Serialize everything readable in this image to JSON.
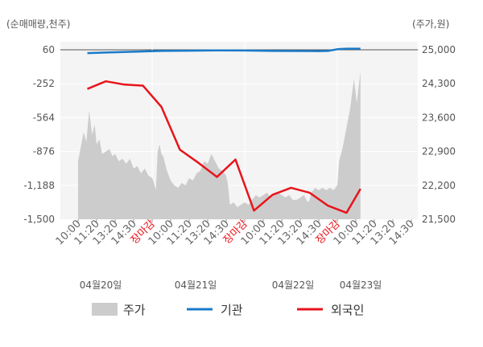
{
  "chart_data": {
    "type": "line",
    "left_axis": {
      "unit_label": "(순매매량,천주)",
      "ticks": [
        60,
        -252,
        -564,
        -876,
        -1188,
        -1500
      ],
      "tick_labels": [
        "60",
        "-252",
        "-564",
        "-876",
        "-1,188",
        "-1,500"
      ],
      "range": [
        -1500,
        60
      ]
    },
    "right_axis": {
      "unit_label": "(주가,원)",
      "ticks": [
        25000,
        24300,
        23600,
        22900,
        22200,
        21500
      ],
      "tick_labels": [
        "25,000",
        "24,300",
        "23,600",
        "22,900",
        "22,200",
        "21,500"
      ],
      "range": [
        21500,
        25000
      ]
    },
    "x_tick_labels": [
      "10:00",
      "11:20",
      "13:20",
      "14:30",
      "장마감",
      "10:00",
      "11:20",
      "13:20",
      "14:30",
      "장마감",
      "10:00",
      "11:20",
      "13:20",
      "14:30",
      "장마감",
      "10:00",
      "11:20",
      "13:20",
      "14:30"
    ],
    "x_tick_red": [
      false,
      false,
      false,
      false,
      true,
      false,
      false,
      false,
      false,
      true,
      false,
      false,
      false,
      false,
      true,
      false,
      false,
      false,
      false
    ],
    "dates": [
      "04월20일",
      "04월21일",
      "04월22일",
      "04월23일"
    ],
    "legend": [
      "주가",
      "기관",
      "외국인"
    ],
    "colors": {
      "price": "#cccccc",
      "institution": "#1a7ac8",
      "foreign": "#e8141b",
      "plot_bg": "#f4f4f4",
      "grid": "#ffffff"
    },
    "series": [
      {
        "name": "주가",
        "axis": "right",
        "points": [
          [
            0.0,
            22700
          ],
          [
            0.3,
            23300
          ],
          [
            0.45,
            23100
          ],
          [
            0.6,
            23750
          ],
          [
            0.75,
            23250
          ],
          [
            0.9,
            23450
          ],
          [
            1.0,
            23050
          ],
          [
            1.15,
            23150
          ],
          [
            1.3,
            22850
          ],
          [
            1.5,
            22900
          ],
          [
            1.7,
            22950
          ],
          [
            1.85,
            22800
          ],
          [
            2.0,
            22850
          ],
          [
            2.2,
            22700
          ],
          [
            2.4,
            22750
          ],
          [
            2.6,
            22650
          ],
          [
            2.8,
            22750
          ],
          [
            3.0,
            22550
          ],
          [
            3.2,
            22600
          ],
          [
            3.4,
            22450
          ],
          [
            3.6,
            22550
          ],
          [
            3.8,
            22400
          ],
          [
            4.0,
            22350
          ],
          [
            4.1,
            22250
          ],
          [
            4.2,
            22100
          ],
          [
            4.3,
            22900
          ],
          [
            4.4,
            23050
          ],
          [
            4.5,
            22850
          ],
          [
            4.6,
            22800
          ],
          [
            4.7,
            22650
          ],
          [
            4.8,
            22500
          ],
          [
            5.0,
            22300
          ],
          [
            5.2,
            22200
          ],
          [
            5.4,
            22150
          ],
          [
            5.6,
            22250
          ],
          [
            5.8,
            22200
          ],
          [
            6.0,
            22350
          ],
          [
            6.2,
            22300
          ],
          [
            6.4,
            22450
          ],
          [
            6.6,
            22500
          ],
          [
            6.8,
            22700
          ],
          [
            7.0,
            22650
          ],
          [
            7.2,
            22850
          ],
          [
            7.4,
            22700
          ],
          [
            7.6,
            22550
          ],
          [
            7.8,
            22500
          ],
          [
            8.0,
            22400
          ],
          [
            8.1,
            22200
          ],
          [
            8.2,
            21800
          ],
          [
            8.4,
            21850
          ],
          [
            8.6,
            21750
          ],
          [
            8.8,
            21800
          ],
          [
            9.0,
            21850
          ],
          [
            9.2,
            21800
          ],
          [
            9.4,
            21900
          ],
          [
            9.6,
            22000
          ],
          [
            9.8,
            21950
          ],
          [
            10.0,
            22000
          ],
          [
            10.2,
            22050
          ],
          [
            10.4,
            21950
          ],
          [
            10.6,
            22050
          ],
          [
            10.8,
            22050
          ],
          [
            11.0,
            22000
          ],
          [
            11.2,
            21950
          ],
          [
            11.4,
            22000
          ],
          [
            11.6,
            21900
          ],
          [
            11.8,
            21900
          ],
          [
            12.0,
            21950
          ],
          [
            12.2,
            22000
          ],
          [
            12.4,
            21850
          ],
          [
            12.5,
            21900
          ],
          [
            12.6,
            22050
          ],
          [
            12.8,
            22150
          ],
          [
            13.0,
            22100
          ],
          [
            13.2,
            22150
          ],
          [
            13.4,
            22100
          ],
          [
            13.6,
            22150
          ],
          [
            13.8,
            22100
          ],
          [
            14.0,
            22200
          ],
          [
            14.1,
            22700
          ],
          [
            14.3,
            23000
          ],
          [
            14.5,
            23400
          ],
          [
            14.7,
            23800
          ],
          [
            14.9,
            24400
          ],
          [
            15.05,
            23900
          ],
          [
            15.25,
            24550
          ]
        ]
      },
      {
        "name": "기관",
        "axis": "left",
        "points": [
          [
            0.5,
            30
          ],
          [
            1.5,
            35
          ],
          [
            3.0,
            42
          ],
          [
            4.5,
            50
          ],
          [
            6.0,
            52
          ],
          [
            7.5,
            54
          ],
          [
            9.0,
            53
          ],
          [
            10.5,
            50
          ],
          [
            12.0,
            49
          ],
          [
            13.0,
            48
          ],
          [
            13.5,
            50
          ],
          [
            14.0,
            65
          ],
          [
            14.5,
            70
          ],
          [
            15.25,
            70
          ]
        ]
      },
      {
        "name": "외국인",
        "axis": "left",
        "points": [
          [
            0.5,
            -300
          ],
          [
            1.5,
            -230
          ],
          [
            2.5,
            -260
          ],
          [
            3.5,
            -270
          ],
          [
            4.5,
            -465
          ],
          [
            5.5,
            -860
          ],
          [
            6.5,
            -980
          ],
          [
            7.5,
            -1110
          ],
          [
            8.5,
            -950
          ],
          [
            9.5,
            -1420
          ],
          [
            10.5,
            -1275
          ],
          [
            11.5,
            -1210
          ],
          [
            12.5,
            -1255
          ],
          [
            13.5,
            -1375
          ],
          [
            14.5,
            -1440
          ],
          [
            15.25,
            -1220
          ]
        ]
      }
    ]
  }
}
